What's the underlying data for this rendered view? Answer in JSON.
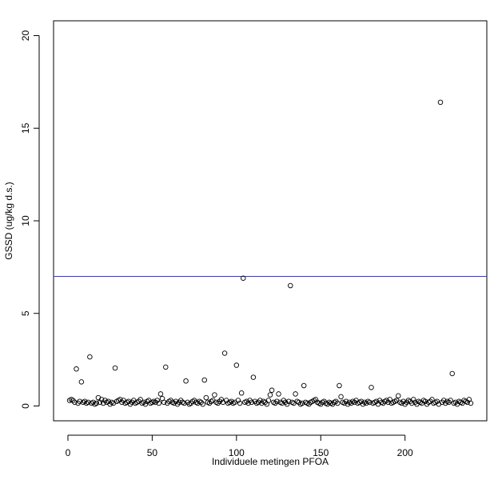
{
  "chart_data": {
    "type": "scatter",
    "x_label": "Individuele metingen PFOA",
    "y_label": "GSSD (ug/kg d.s.)",
    "xlim": [
      -8.52,
      248.52
    ],
    "ylim": [
      -0.8,
      20.8
    ],
    "xticks": [
      0,
      50,
      100,
      150,
      200
    ],
    "yticks": [
      0,
      5,
      10,
      15,
      20
    ],
    "point_color": "#000000",
    "hline": {
      "value": 7,
      "color": "#3333ff"
    },
    "series": [
      {
        "x": [
          1,
          2,
          3,
          4,
          5,
          6,
          7,
          8,
          9,
          10,
          11,
          12,
          13,
          14,
          15,
          16,
          17,
          18,
          19,
          20,
          21,
          22,
          23,
          24,
          25,
          26,
          27,
          28,
          29,
          30,
          31,
          32,
          33,
          34,
          35,
          36,
          37,
          38,
          39,
          40,
          41,
          42,
          43,
          44,
          45,
          46,
          47,
          48,
          49,
          50,
          51,
          52,
          53,
          54,
          55,
          56,
          57,
          58,
          59,
          60,
          61,
          62,
          63,
          64,
          65,
          66,
          67,
          68,
          69,
          70,
          71,
          72,
          73,
          74,
          75,
          76,
          77,
          78,
          79,
          80,
          81,
          82,
          83,
          84,
          85,
          86,
          87,
          88,
          89,
          90,
          91,
          92,
          93,
          94,
          95,
          96,
          97,
          98,
          99,
          100,
          101,
          102,
          103,
          104,
          105,
          106,
          107,
          108,
          109,
          110,
          111,
          112,
          113,
          114,
          115,
          116,
          117,
          118,
          119,
          120,
          121,
          122,
          123,
          124,
          125,
          126,
          127,
          128,
          129,
          130,
          131,
          132,
          133,
          134,
          135,
          136,
          137,
          138,
          139,
          140,
          141,
          142,
          143,
          144,
          145,
          146,
          147,
          148,
          149,
          150,
          151,
          152,
          153,
          154,
          155,
          156,
          157,
          158,
          159,
          160,
          161,
          162,
          163,
          164,
          165,
          166,
          167,
          168,
          169,
          170,
          171,
          172,
          173,
          174,
          175,
          176,
          177,
          178,
          179,
          180,
          181,
          182,
          183,
          184,
          185,
          186,
          187,
          188,
          189,
          190,
          191,
          192,
          193,
          194,
          195,
          196,
          197,
          198,
          199,
          200,
          201,
          202,
          203,
          204,
          205,
          206,
          207,
          208,
          209,
          210,
          211,
          212,
          213,
          214,
          215,
          216,
          217,
          218,
          219,
          220,
          221,
          222,
          223,
          224,
          225,
          226,
          227,
          228,
          229,
          230,
          231,
          232,
          233,
          234,
          235,
          236,
          237,
          238,
          239
        ],
        "values": [
          0.3,
          0.35,
          0.3,
          0.2,
          2.0,
          0.15,
          0.25,
          1.3,
          0.2,
          0.25,
          0.15,
          0.2,
          2.65,
          0.15,
          0.2,
          0.1,
          0.15,
          0.45,
          0.2,
          0.35,
          0.15,
          0.3,
          0.2,
          0.25,
          0.1,
          0.2,
          0.15,
          2.05,
          0.25,
          0.3,
          0.35,
          0.2,
          0.3,
          0.15,
          0.2,
          0.25,
          0.1,
          0.2,
          0.3,
          0.15,
          0.2,
          0.25,
          0.35,
          0.15,
          0.2,
          0.1,
          0.25,
          0.3,
          0.15,
          0.2,
          0.25,
          0.2,
          0.3,
          0.15,
          0.65,
          0.4,
          0.2,
          2.1,
          0.15,
          0.25,
          0.3,
          0.2,
          0.15,
          0.25,
          0.1,
          0.2,
          0.3,
          0.2,
          0.15,
          1.35,
          0.2,
          0.1,
          0.15,
          0.25,
          0.3,
          0.2,
          0.15,
          0.25,
          0.2,
          0.1,
          1.4,
          0.45,
          0.2,
          0.15,
          0.25,
          0.3,
          0.6,
          0.2,
          0.15,
          0.25,
          0.35,
          0.2,
          2.85,
          0.3,
          0.15,
          0.2,
          0.25,
          0.15,
          0.2,
          2.2,
          0.3,
          0.15,
          0.7,
          6.9,
          0.2,
          0.25,
          0.15,
          0.3,
          0.2,
          1.55,
          0.25,
          0.15,
          0.2,
          0.3,
          0.15,
          0.25,
          0.2,
          0.1,
          0.3,
          0.6,
          0.85,
          0.2,
          0.15,
          0.25,
          0.65,
          0.2,
          0.15,
          0.3,
          0.2,
          0.1,
          0.25,
          6.5,
          0.2,
          0.15,
          0.65,
          0.25,
          0.2,
          0.1,
          0.15,
          1.1,
          0.2,
          0.15,
          0.1,
          0.2,
          0.25,
          0.3,
          0.35,
          0.2,
          0.15,
          0.1,
          0.2,
          0.25,
          0.15,
          0.1,
          0.2,
          0.15,
          0.1,
          0.2,
          0.25,
          0.15,
          1.1,
          0.5,
          0.2,
          0.15,
          0.25,
          0.1,
          0.2,
          0.15,
          0.25,
          0.2,
          0.3,
          0.15,
          0.2,
          0.25,
          0.1,
          0.2,
          0.15,
          0.25,
          0.2,
          1.0,
          0.15,
          0.2,
          0.25,
          0.1,
          0.3,
          0.2,
          0.15,
          0.25,
          0.3,
          0.2,
          0.35,
          0.15,
          0.2,
          0.25,
          0.3,
          0.55,
          0.2,
          0.15,
          0.25,
          0.1,
          0.2,
          0.3,
          0.25,
          0.15,
          0.35,
          0.2,
          0.1,
          0.25,
          0.2,
          0.15,
          0.3,
          0.25,
          0.1,
          0.2,
          0.25,
          0.35,
          0.15,
          0.2,
          0.25,
          0.1,
          16.4,
          0.2,
          0.3,
          0.15,
          0.25,
          0.2,
          0.3,
          1.75,
          0.15,
          0.2,
          0.1,
          0.25,
          0.2,
          0.15,
          0.3,
          0.25,
          0.2,
          0.35,
          0.15
        ]
      }
    ]
  }
}
